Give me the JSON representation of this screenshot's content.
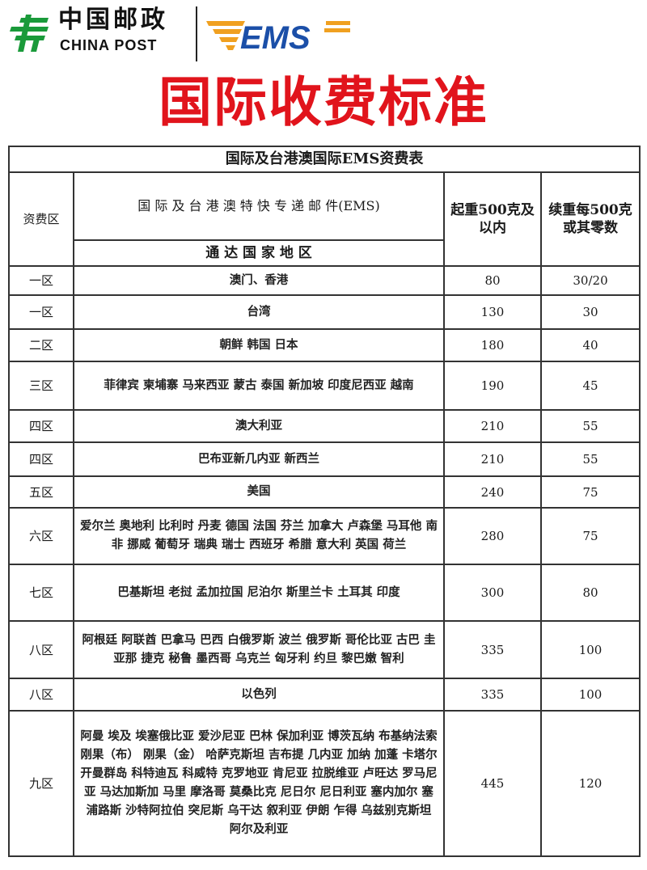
{
  "header": {
    "china_post_cn": "中国邮政",
    "china_post_en": "CHINA POST",
    "ems_logo": "EMS",
    "title": "国际收费标准"
  },
  "colors": {
    "title_red": "#e1141c",
    "china_post_green": "#1a9a3a",
    "ems_blue": "#1b4fa8",
    "ems_orange": "#f0a020"
  },
  "table": {
    "title": "国际及台港澳国际EMS资费表",
    "col_zone": "资费区",
    "col_service": "国 际 及 台 港 澳 特 快 专 递 邮 件(EMS)",
    "col_countries": "通 达 国 家 地 区",
    "col_first": "起重500克及以内",
    "col_extra": "续重每500克或其零数",
    "rows": [
      {
        "zone": "一区",
        "countries": "澳门、香港",
        "first": "80",
        "extra": "30/20"
      },
      {
        "zone": "一区",
        "countries": "台湾",
        "first": "130",
        "extra": "30"
      },
      {
        "zone": "二区",
        "countries": "朝鲜 韩国 日本",
        "first": "180",
        "extra": "40"
      },
      {
        "zone": "三区",
        "countries": "菲律宾 柬埔寨 马来西亚 蒙古 泰国 新加坡 印度尼西亚 越南",
        "first": "190",
        "extra": "45"
      },
      {
        "zone": "四区",
        "countries": "澳大利亚",
        "first": "210",
        "extra": "55"
      },
      {
        "zone": "四区",
        "countries": "巴布亚新几内亚 新西兰",
        "first": "210",
        "extra": "55"
      },
      {
        "zone": "五区",
        "countries": "美国",
        "first": "240",
        "extra": "75"
      },
      {
        "zone": "六区",
        "countries": "爱尔兰 奥地利 比利时 丹麦 德国 法国 芬兰 加拿大 卢森堡 马耳他 南非 挪威 葡萄牙 瑞典 瑞士 西班牙 希腊 意大利 英国 荷兰",
        "first": "280",
        "extra": "75"
      },
      {
        "zone": "七区",
        "countries": "巴基斯坦 老挝 孟加拉国 尼泊尔 斯里兰卡 土耳其 印度",
        "first": "300",
        "extra": "80"
      },
      {
        "zone": "八区",
        "countries": "阿根廷 阿联酋 巴拿马 巴西 白俄罗斯 波兰 俄罗斯 哥伦比亚 古巴 圭亚那 捷克 秘鲁 墨西哥 乌克兰 匈牙利 约旦 黎巴嫩 智利",
        "first": "335",
        "extra": "100"
      },
      {
        "zone": "八区",
        "countries": "以色列",
        "first": "335",
        "extra": "100"
      },
      {
        "zone": "九区",
        "countries": "阿曼 埃及 埃塞俄比亚 爱沙尼亚 巴林 保加利亚 博茨瓦纳 布基纳法索 刚果（布） 刚果（金） 哈萨克斯坦 吉布提 几内亚 加纳 加蓬 卡塔尔 开曼群岛 科特迪瓦 科威特 克罗地亚 肯尼亚 拉脱维亚 卢旺达 罗马尼亚 马达加斯加 马里 摩洛哥 莫桑比克 尼日尔 尼日利亚 塞内加尔 塞浦路斯 沙特阿拉伯 突尼斯 乌干达 叙利亚 伊朗 乍得 乌兹别克斯坦 阿尔及利亚",
        "first": "445",
        "extra": "120"
      }
    ]
  }
}
